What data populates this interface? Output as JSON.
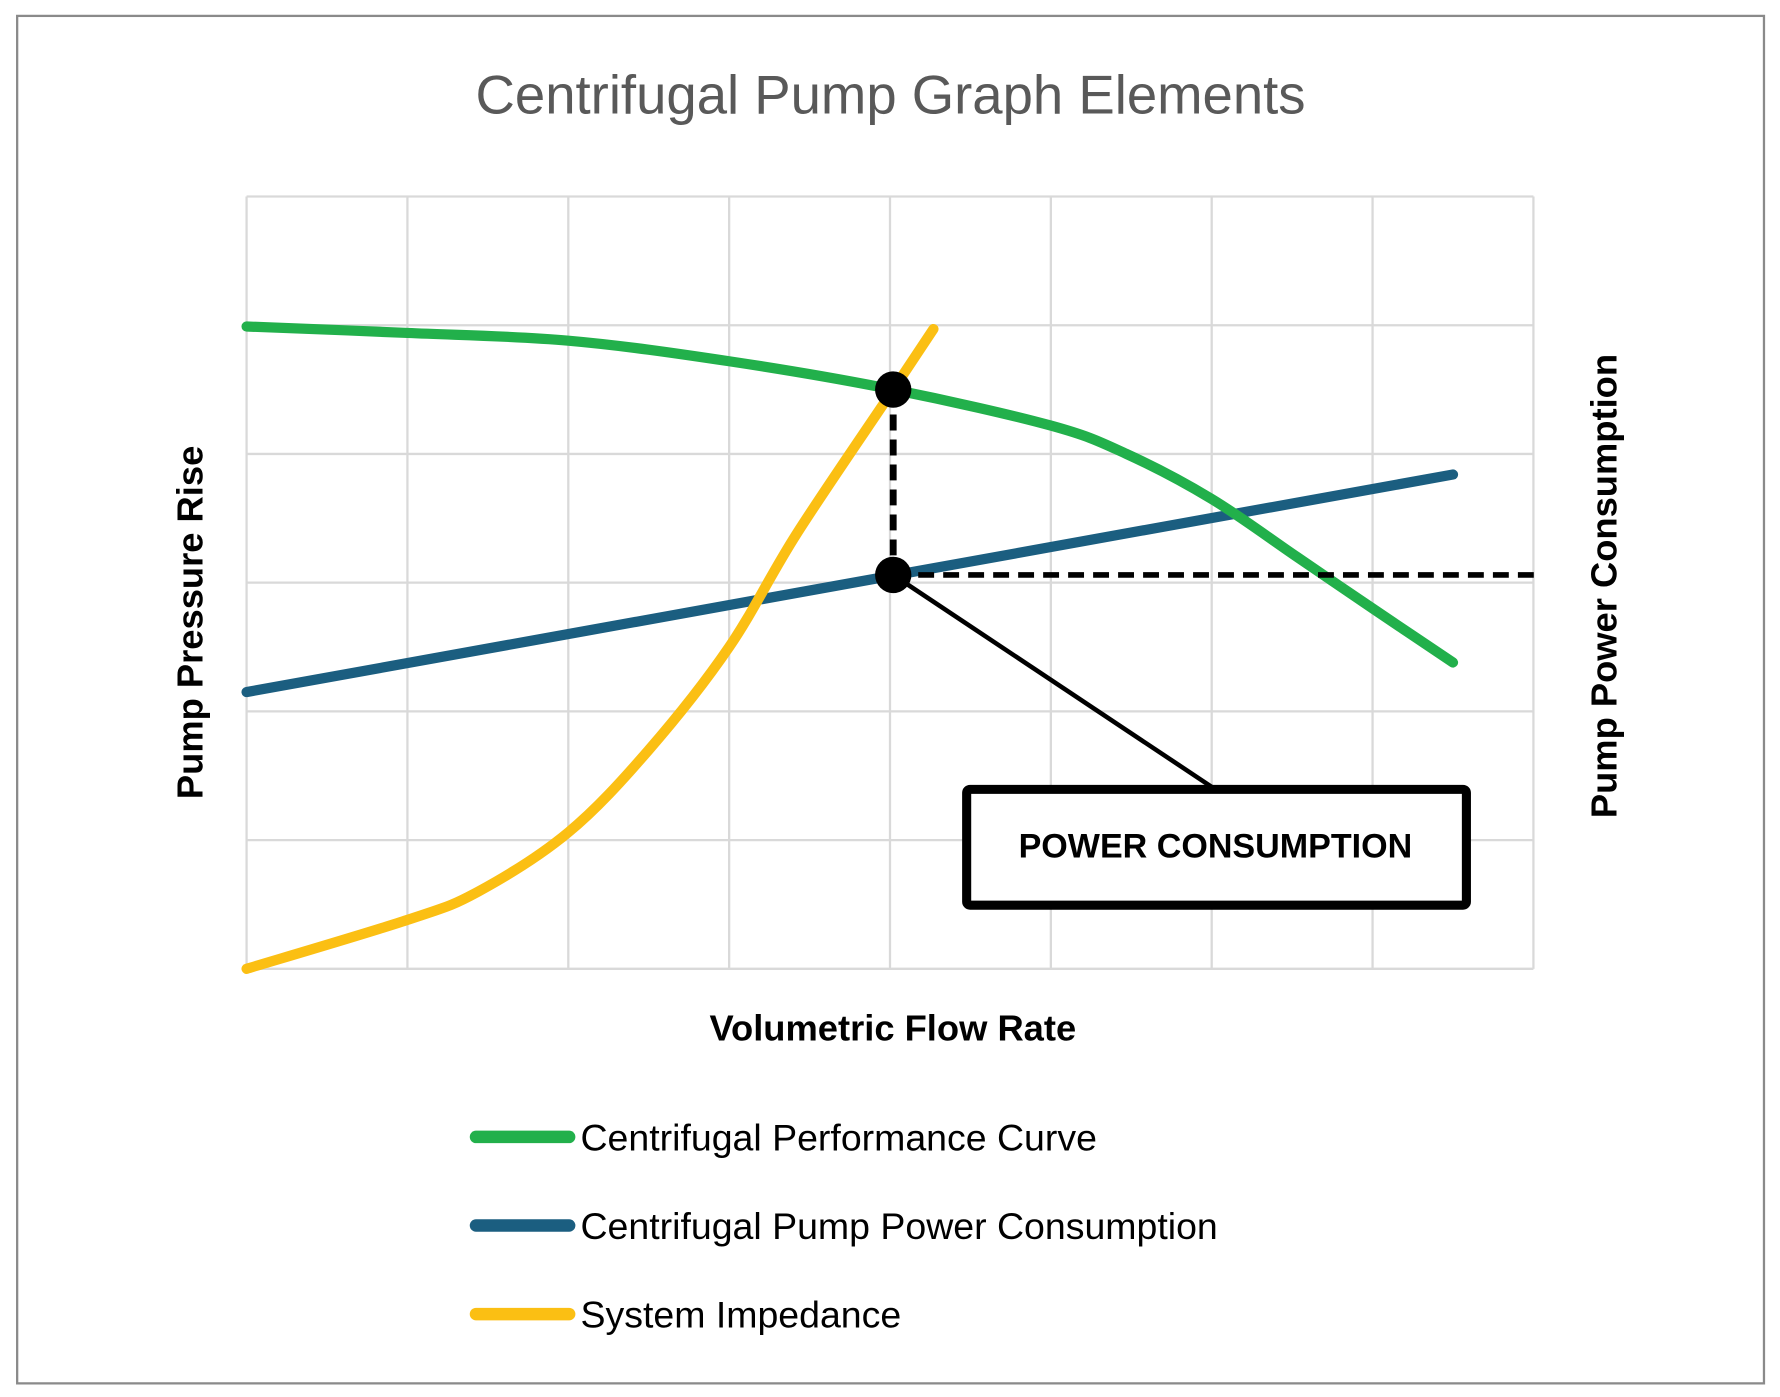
{
  "chart_data": {
    "type": "line",
    "title": "Centrifugal Pump Graph Elements",
    "xlabel": "Volumetric Flow Rate",
    "ylabel": "Pump Pressure Rise",
    "ylabel_right": "Pump Power Consumption",
    "xlim": [
      0,
      8
    ],
    "ylim": [
      0,
      6
    ],
    "grid": true,
    "legend_position": "bottom",
    "series": [
      {
        "name": "Centrifugal Performance Curve",
        "color": "#22b04b",
        "x": [
          0,
          1,
          2,
          3,
          4.02,
          5,
          5.47,
          6,
          6.53,
          7,
          7.5
        ],
        "y": [
          4.99,
          4.94,
          4.88,
          4.72,
          4.5,
          4.22,
          4.0,
          3.65,
          3.2,
          2.8,
          2.38
        ]
      },
      {
        "name": "Centrifugal Pump Power Consumption",
        "color": "#1b5e80",
        "x": [
          0,
          7.5
        ],
        "y": [
          2.15,
          3.84
        ]
      },
      {
        "name": "System Impedance",
        "color": "#fbbf13",
        "x": [
          0,
          1,
          1.44,
          2,
          2.5,
          3,
          3.42,
          4.02,
          4.27
        ],
        "y": [
          0,
          0.38,
          0.6,
          1.06,
          1.7,
          2.5,
          3.38,
          4.5,
          4.97
        ]
      }
    ],
    "annotations": {
      "operating_point": {
        "x": 4.02,
        "y": 4.5
      },
      "power_point": {
        "x": 4.02,
        "y": 3.06
      },
      "callout": "POWER CONSUMPTION"
    }
  }
}
